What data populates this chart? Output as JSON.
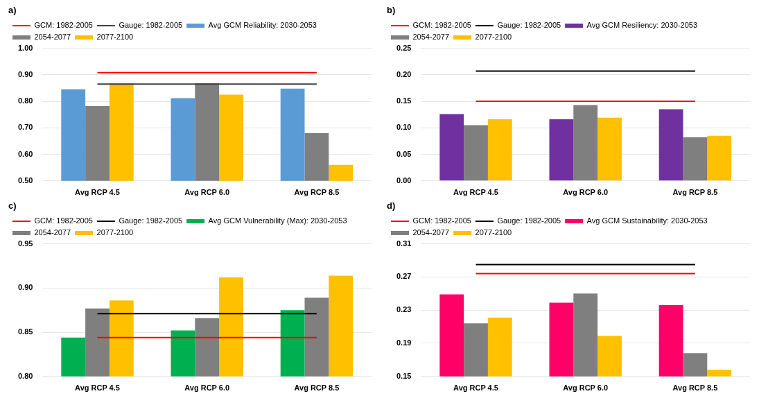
{
  "chart_data": [
    {
      "type": "bar",
      "title": "a)",
      "categories": [
        "Avg RCP 4.5",
        "Avg RCP 6.0",
        "Avg RCP 8.5"
      ],
      "ylim": [
        0.5,
        1.0
      ],
      "yticks": [
        {
          "value": 0.5,
          "label": "0.50"
        },
        {
          "value": 0.6,
          "label": "0.60"
        },
        {
          "value": 0.7,
          "label": "0.70"
        },
        {
          "value": 0.8,
          "label": "0.80"
        },
        {
          "value": 0.9,
          "label": "0.90"
        },
        {
          "value": 1.0,
          "label": "1.00"
        }
      ],
      "grid": "y",
      "legend": "top",
      "marker": "none",
      "series": [
        {
          "name": "Avg GCM Reliability: 2030-2053",
          "color": "#5b9bd5",
          "values": [
            0.845,
            0.812,
            0.848
          ]
        },
        {
          "name": "2054-2077",
          "color": "#7f7f7f",
          "values": [
            0.782,
            0.868,
            0.68
          ]
        },
        {
          "name": "2077-2100",
          "color": "#ffc000",
          "values": [
            0.868,
            0.825,
            0.56
          ]
        },
        {
          "name": "GCM: 1982-2005",
          "color": "#ff0000",
          "type": "line",
          "values": [
            0.908,
            0.908,
            0.908
          ]
        },
        {
          "name": "Gauge: 1982-2005",
          "color": "#404040",
          "type": "line",
          "values": [
            0.865,
            0.865,
            0.865
          ]
        }
      ]
    },
    {
      "type": "bar",
      "title": "b)",
      "categories": [
        "Avg RCP 4.5",
        "Avg RCP 6.0",
        "Avg RCP 8.5"
      ],
      "ylim": [
        0,
        0.25
      ],
      "yticks": [
        {
          "value": 0,
          "label": "0.00"
        },
        {
          "value": 0.05,
          "label": "0.05"
        },
        {
          "value": 0.1,
          "label": "0.10"
        },
        {
          "value": 0.15,
          "label": "0.15"
        },
        {
          "value": 0.2,
          "label": "0.20"
        },
        {
          "value": 0.25,
          "label": "0.25"
        }
      ],
      "grid": "y",
      "legend": "top",
      "marker": "none",
      "series": [
        {
          "name": "Avg GCM Resiliency: 2030-2053",
          "color": "#7030a0",
          "values": [
            0.126,
            0.116,
            0.135
          ]
        },
        {
          "name": "2054-2077",
          "color": "#7f7f7f",
          "values": [
            0.105,
            0.143,
            0.082
          ]
        },
        {
          "name": "2077-2100",
          "color": "#ffc000",
          "values": [
            0.116,
            0.119,
            0.085
          ]
        },
        {
          "name": "GCM: 1982-2005",
          "color": "#ff0000",
          "type": "line",
          "values": [
            0.15,
            0.15,
            0.15
          ]
        },
        {
          "name": "Gauge: 1982-2005",
          "color": "#000000",
          "type": "line",
          "values": [
            0.207,
            0.207,
            0.207
          ]
        }
      ]
    },
    {
      "type": "bar",
      "title": "c)",
      "categories": [
        "Avg RCP 4.5",
        "Avg RCP 6.0",
        "Avg RCP 8.5"
      ],
      "ylim": [
        0.8,
        0.95
      ],
      "yticks": [
        {
          "value": 0.8,
          "label": "0.80"
        },
        {
          "value": 0.85,
          "label": "0.85"
        },
        {
          "value": 0.9,
          "label": "0.90"
        },
        {
          "value": 0.95,
          "label": "0.95"
        }
      ],
      "grid": "y",
      "legend": "top",
      "marker": "none",
      "series": [
        {
          "name": "Avg GCM Vulnerability (Max): 2030-2053",
          "color": "#00b050",
          "values": [
            0.844,
            0.852,
            0.875
          ]
        },
        {
          "name": "2054-2077",
          "color": "#7f7f7f",
          "values": [
            0.877,
            0.866,
            0.889
          ]
        },
        {
          "name": "2077-2100",
          "color": "#ffc000",
          "values": [
            0.886,
            0.912,
            0.914
          ]
        },
        {
          "name": "GCM: 1982-2005",
          "color": "#ff0000",
          "type": "line",
          "values": [
            0.844,
            0.844,
            0.844
          ]
        },
        {
          "name": "Gauge: 1982-2005",
          "color": "#000000",
          "type": "line",
          "values": [
            0.871,
            0.871,
            0.871
          ]
        }
      ]
    },
    {
      "type": "bar",
      "title": "d)",
      "categories": [
        "Avg RCP 4.5",
        "Avg RCP 6.0",
        "Avg RCP 8.5"
      ],
      "ylim": [
        0.15,
        0.31
      ],
      "yticks": [
        0.15,
        0.19,
        0.23,
        0.27,
        0.31
      ],
      "grid": "y",
      "legend": "top",
      "marker": "none",
      "series": [
        {
          "name": "Avg GCM Sustainability: 2030-2053",
          "color": "#ff0066",
          "values": [
            0.249,
            0.239,
            0.236
          ]
        },
        {
          "name": "2054-2077",
          "color": "#7f7f7f",
          "values": [
            0.214,
            0.25,
            0.178
          ]
        },
        {
          "name": "2077-2100",
          "color": "#ffc000",
          "values": [
            0.221,
            0.199,
            0.158
          ]
        },
        {
          "name": "GCM: 1982-2005",
          "color": "#ff0000",
          "type": "line",
          "values": [
            0.274,
            0.274,
            0.274
          ]
        },
        {
          "name": "Gauge: 1982-2005",
          "color": "#000000",
          "type": "line",
          "values": [
            0.285,
            0.285,
            0.285
          ]
        }
      ]
    }
  ]
}
